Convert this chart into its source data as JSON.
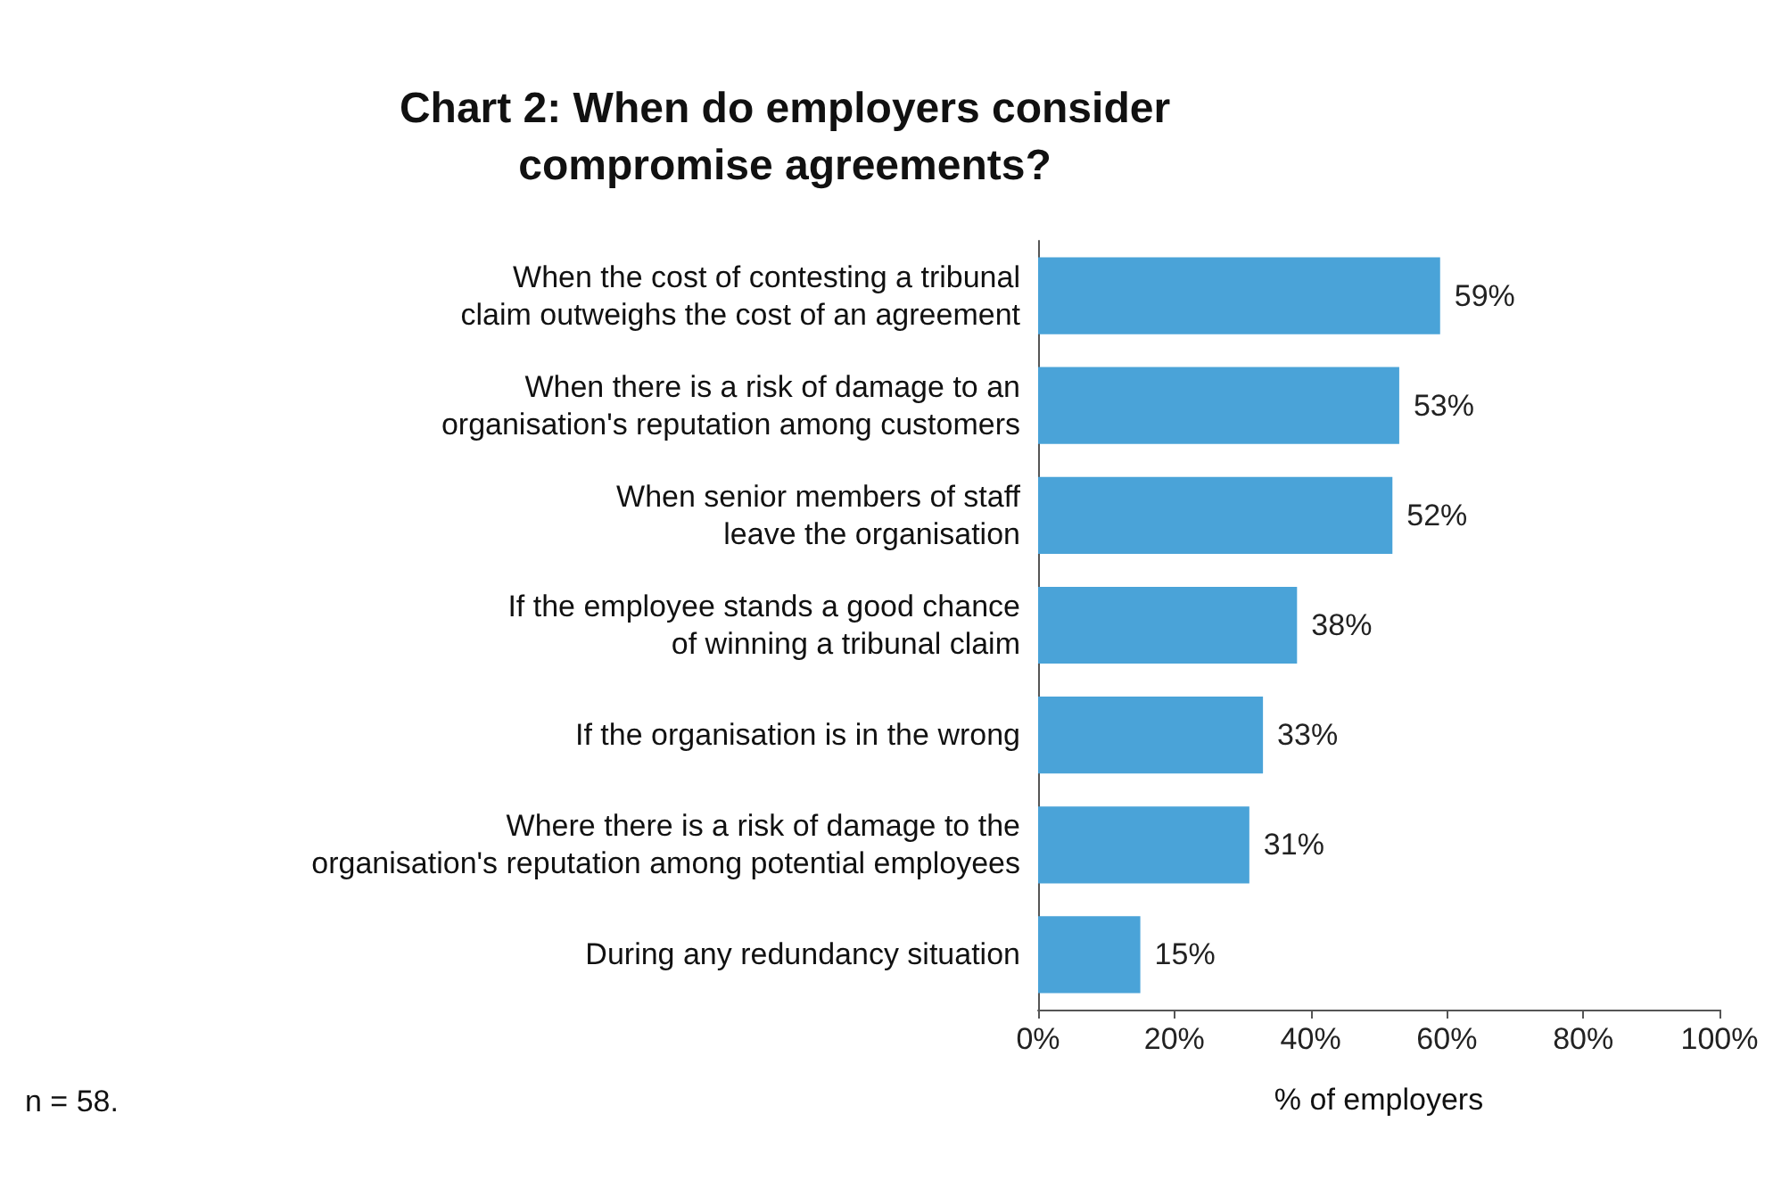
{
  "chart_data": {
    "type": "bar",
    "orientation": "horizontal",
    "title": "Chart 2: When do employers consider\ncompromise agreements?",
    "categories": [
      "When the cost of contesting a tribunal\nclaim outweighs the cost of an agreement",
      "When there is a risk of damage to an\norganisation's reputation among customers",
      "When senior members of staff\nleave the organisation",
      "If the employee stands a good chance\nof winning a tribunal claim",
      "If the organisation is in the wrong",
      "Where there is a risk of damage to the\norganisation's reputation among potential employees",
      "During any redundancy situation"
    ],
    "values": [
      59,
      53,
      52,
      38,
      33,
      31,
      15
    ],
    "value_labels": [
      "59%",
      "53%",
      "52%",
      "38%",
      "33%",
      "31%",
      "15%"
    ],
    "color": "#4aa3d8",
    "xlabel": "% of employers",
    "xlim": [
      0,
      100
    ],
    "xticks": [
      {
        "value": 0,
        "label": "0%"
      },
      {
        "value": 20,
        "label": "20%"
      },
      {
        "value": 40,
        "label": "40%"
      },
      {
        "value": 60,
        "label": "60%"
      },
      {
        "value": 80,
        "label": "80%"
      },
      {
        "value": 100,
        "label": "100%"
      }
    ],
    "annotations": [
      "n = 58."
    ],
    "grid": false
  }
}
